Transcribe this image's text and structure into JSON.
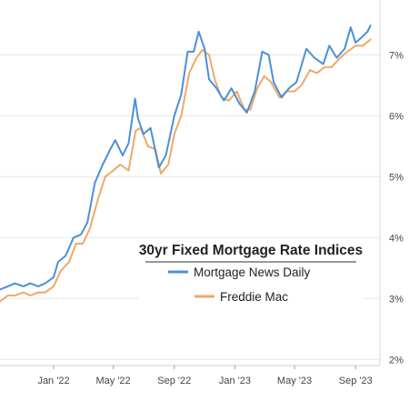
{
  "chart_data": {
    "type": "line",
    "title": "30yr Fixed Mortgage Rate Indices",
    "legend_position": "center-right",
    "grid": true,
    "x_range": [
      "2021-09-15",
      "2023-10-20"
    ],
    "ylim": [
      1.9,
      7.9
    ],
    "y_ticks": [
      2,
      3,
      4,
      5,
      6,
      7
    ],
    "y_tick_labels": [
      "2%",
      "3%",
      "4%",
      "5%",
      "6%",
      "7%"
    ],
    "x_ticks": [
      "2022-01-01",
      "2022-05-01",
      "2022-09-01",
      "2023-01-01",
      "2023-05-01",
      "2023-09-01"
    ],
    "x_tick_labels": [
      "Jan '22",
      "May '22",
      "Sep '22",
      "Jan '23",
      "May '23",
      "Sep '23"
    ],
    "series": [
      {
        "name": "Mortgage News Daily",
        "color": "#4a90d9",
        "points": [
          [
            "2021-09-15",
            3.15
          ],
          [
            "2021-10-01",
            3.2
          ],
          [
            "2021-10-15",
            3.25
          ],
          [
            "2021-11-01",
            3.2
          ],
          [
            "2021-11-15",
            3.25
          ],
          [
            "2021-12-01",
            3.2
          ],
          [
            "2021-12-15",
            3.25
          ],
          [
            "2022-01-01",
            3.35
          ],
          [
            "2022-01-10",
            3.6
          ],
          [
            "2022-01-25",
            3.7
          ],
          [
            "2022-02-10",
            4.0
          ],
          [
            "2022-02-25",
            4.05
          ],
          [
            "2022-03-10",
            4.25
          ],
          [
            "2022-03-25",
            4.9
          ],
          [
            "2022-04-10",
            5.2
          ],
          [
            "2022-04-25",
            5.45
          ],
          [
            "2022-05-05",
            5.6
          ],
          [
            "2022-05-20",
            5.35
          ],
          [
            "2022-06-01",
            5.55
          ],
          [
            "2022-06-14",
            6.28
          ],
          [
            "2022-06-20",
            5.95
          ],
          [
            "2022-07-01",
            5.7
          ],
          [
            "2022-07-15",
            5.8
          ],
          [
            "2022-08-01",
            5.15
          ],
          [
            "2022-08-15",
            5.35
          ],
          [
            "2022-09-01",
            6.0
          ],
          [
            "2022-09-15",
            6.35
          ],
          [
            "2022-09-28",
            7.05
          ],
          [
            "2022-10-10",
            7.05
          ],
          [
            "2022-10-20",
            7.38
          ],
          [
            "2022-11-01",
            7.1
          ],
          [
            "2022-11-10",
            6.6
          ],
          [
            "2022-11-25",
            6.45
          ],
          [
            "2022-12-10",
            6.25
          ],
          [
            "2022-12-25",
            6.45
          ],
          [
            "2023-01-10",
            6.2
          ],
          [
            "2023-01-25",
            6.05
          ],
          [
            "2023-02-10",
            6.4
          ],
          [
            "2023-02-25",
            7.05
          ],
          [
            "2023-03-10",
            7.0
          ],
          [
            "2023-03-20",
            6.55
          ],
          [
            "2023-04-05",
            6.3
          ],
          [
            "2023-04-20",
            6.45
          ],
          [
            "2023-05-05",
            6.55
          ],
          [
            "2023-05-25",
            7.1
          ],
          [
            "2023-06-10",
            6.95
          ],
          [
            "2023-06-28",
            6.85
          ],
          [
            "2023-07-10",
            7.15
          ],
          [
            "2023-07-25",
            6.95
          ],
          [
            "2023-08-10",
            7.1
          ],
          [
            "2023-08-22",
            7.45
          ],
          [
            "2023-09-01",
            7.2
          ],
          [
            "2023-09-15",
            7.3
          ],
          [
            "2023-09-25",
            7.38
          ],
          [
            "2023-10-01",
            7.48
          ]
        ]
      },
      {
        "name": "Freddie Mac",
        "color": "#f0a868",
        "points": [
          [
            "2021-09-15",
            2.95
          ],
          [
            "2021-10-01",
            3.05
          ],
          [
            "2021-10-15",
            3.05
          ],
          [
            "2021-11-01",
            3.1
          ],
          [
            "2021-11-15",
            3.05
          ],
          [
            "2021-12-01",
            3.1
          ],
          [
            "2021-12-15",
            3.1
          ],
          [
            "2022-01-01",
            3.2
          ],
          [
            "2022-01-15",
            3.45
          ],
          [
            "2022-02-01",
            3.6
          ],
          [
            "2022-02-15",
            3.9
          ],
          [
            "2022-03-01",
            3.9
          ],
          [
            "2022-03-15",
            4.15
          ],
          [
            "2022-04-01",
            4.65
          ],
          [
            "2022-04-15",
            5.0
          ],
          [
            "2022-05-01",
            5.1
          ],
          [
            "2022-05-15",
            5.2
          ],
          [
            "2022-06-01",
            5.1
          ],
          [
            "2022-06-15",
            5.75
          ],
          [
            "2022-06-25",
            5.8
          ],
          [
            "2022-07-10",
            5.5
          ],
          [
            "2022-07-25",
            5.45
          ],
          [
            "2022-08-05",
            5.05
          ],
          [
            "2022-08-20",
            5.2
          ],
          [
            "2022-09-01",
            5.7
          ],
          [
            "2022-09-15",
            6.0
          ],
          [
            "2022-10-01",
            6.7
          ],
          [
            "2022-10-15",
            6.94
          ],
          [
            "2022-10-27",
            7.08
          ],
          [
            "2022-11-10",
            7.0
          ],
          [
            "2022-11-22",
            6.58
          ],
          [
            "2022-12-05",
            6.3
          ],
          [
            "2022-12-20",
            6.25
          ],
          [
            "2023-01-05",
            6.4
          ],
          [
            "2023-01-20",
            6.1
          ],
          [
            "2023-02-01",
            6.1
          ],
          [
            "2023-02-15",
            6.45
          ],
          [
            "2023-03-01",
            6.65
          ],
          [
            "2023-03-15",
            6.55
          ],
          [
            "2023-04-01",
            6.3
          ],
          [
            "2023-04-15",
            6.4
          ],
          [
            "2023-05-01",
            6.4
          ],
          [
            "2023-05-15",
            6.5
          ],
          [
            "2023-06-01",
            6.75
          ],
          [
            "2023-06-15",
            6.7
          ],
          [
            "2023-07-01",
            6.8
          ],
          [
            "2023-07-15",
            6.8
          ],
          [
            "2023-08-01",
            6.95
          ],
          [
            "2023-08-15",
            7.05
          ],
          [
            "2023-09-01",
            7.15
          ],
          [
            "2023-09-15",
            7.15
          ],
          [
            "2023-10-01",
            7.25
          ]
        ]
      }
    ]
  }
}
